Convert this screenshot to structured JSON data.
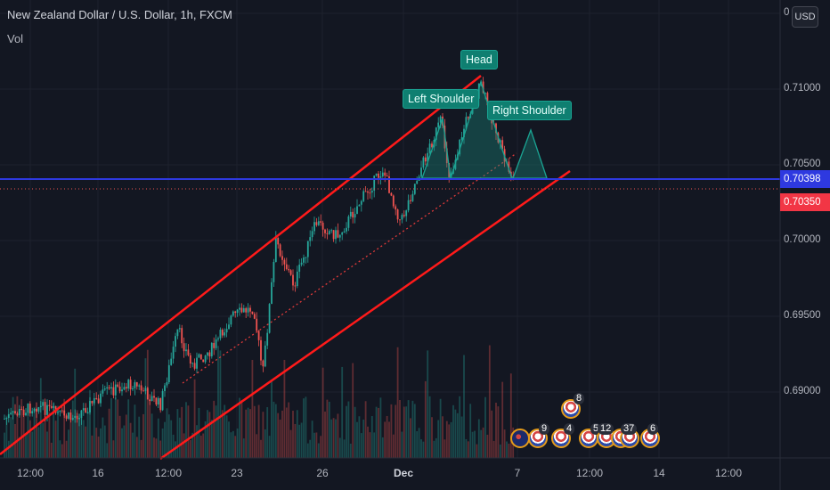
{
  "header": {
    "symbol_title": "New Zealand Dollar / U.S. Dollar, 1h, FXCM",
    "volume_label": "Vol",
    "currency_button": "USD"
  },
  "price_axis": {
    "labels": [
      "0",
      "0.71000",
      "0.70500",
      "0.70000",
      "0.69500",
      "0.69000"
    ],
    "current_price_tag": "0.70398",
    "secondary_price_tag": "0.70350"
  },
  "time_axis": {
    "labels": [
      "12:00",
      "16",
      "12:00",
      "23",
      "26",
      "Dec",
      "7",
      "12:00",
      "14",
      "12:00"
    ]
  },
  "pattern_labels": {
    "left_shoulder": "Left Shoulder",
    "head": "Head",
    "right_shoulder": "Right Shoulder"
  },
  "events": {
    "counts": [
      "9",
      "4",
      "8",
      "5",
      "12",
      "37",
      "6"
    ]
  },
  "colors": {
    "background": "#131722",
    "up_candle": "#26a69a",
    "down_candle": "#ef5350",
    "channel": "#ff1a1a",
    "current_price_line": "#2e39e0",
    "pattern_fill": "#1a8f80"
  },
  "chart_data": {
    "type": "candlestick",
    "symbol": "NZDUSD",
    "interval": "1h",
    "ylim": [
      0.687,
      0.7145
    ],
    "trend": "ascending channel, Nov 12 to Dec 4",
    "pattern": "head and shoulders near top of channel",
    "current_price": 0.70398,
    "secondary_price": 0.7035
  }
}
